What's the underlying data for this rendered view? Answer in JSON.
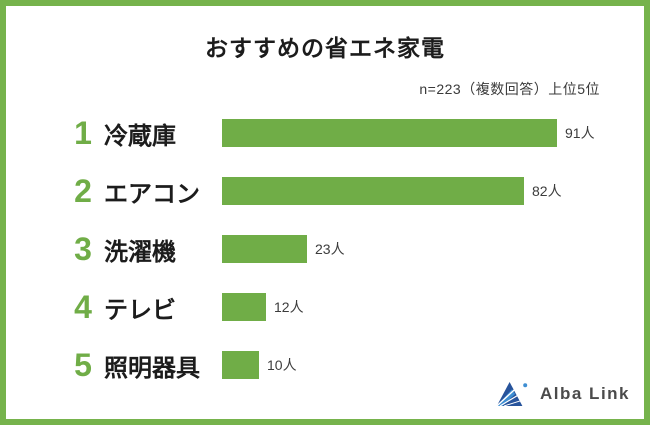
{
  "frame": {
    "border_color": "#76b34c"
  },
  "header": {
    "title": "おすすめの省エネ家電",
    "subtitle": "n=223（複数回答）上位5位"
  },
  "chart_data": {
    "type": "bar",
    "orientation": "horizontal",
    "title": "おすすめの省エネ家電",
    "note": "n=223（複数回答）上位5位",
    "ranks": [
      1,
      2,
      3,
      4,
      5
    ],
    "categories": [
      "冷蔵庫",
      "エアコン",
      "洗濯機",
      "テレビ",
      "照明器具"
    ],
    "values": [
      91,
      82,
      23,
      12,
      10
    ],
    "unit": "人",
    "value_labels": [
      "91人",
      "82人",
      "23人",
      "12人",
      "10人"
    ],
    "xlim": [
      0,
      111
    ],
    "bar_color": "#70ad47",
    "grid": false,
    "legend": false,
    "value_label_position": "right-of-bar"
  },
  "logo": {
    "text": "Alba Link",
    "icon": "alba-link-sail-icon",
    "colors": {
      "dark_blue": "#27539b",
      "light_blue": "#3e8ed2",
      "text": "#4b4b4b"
    }
  }
}
